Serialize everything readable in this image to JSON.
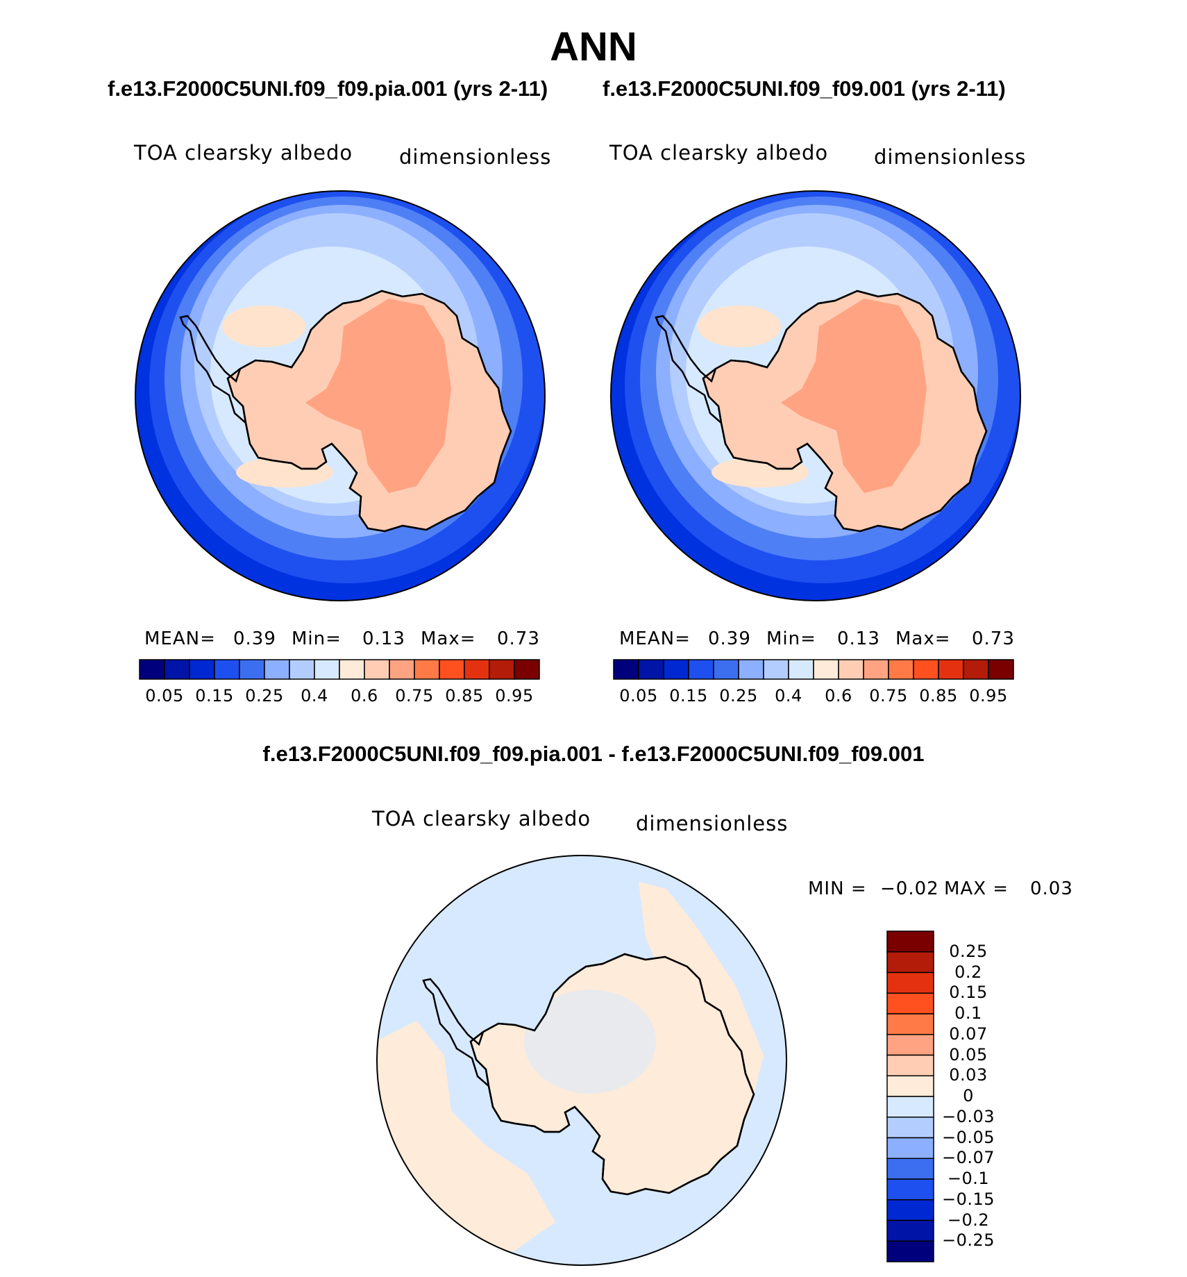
{
  "page_title": "ANN",
  "panels": [
    {
      "id": "left",
      "case": "f.e13.F2000C5UNI.f09_f09.pia.001 (yrs 2-11)",
      "variable": "TOA clearsky albedo",
      "units": "dimensionless",
      "stats": {
        "mean_label": "MEAN=",
        "mean": "0.39",
        "min_label": "Min=",
        "min": "0.13",
        "max_label": "Max=",
        "max": "0.73"
      }
    },
    {
      "id": "right",
      "case": "f.e13.F2000C5UNI.f09_f09.001 (yrs 2-11)",
      "variable": "TOA clearsky albedo",
      "units": "dimensionless",
      "stats": {
        "mean_label": "MEAN=",
        "mean": "0.39",
        "min_label": "Min=",
        "min": "0.13",
        "max_label": "Max=",
        "max": "0.73"
      }
    }
  ],
  "colorbar": {
    "colors": [
      "#00007c",
      "#0014a8",
      "#0028d2",
      "#1e50f0",
      "#3c6ef0",
      "#8cafff",
      "#b4cdff",
      "#d7e9ff",
      "#ffebd9",
      "#ffcdb4",
      "#ffa382",
      "#ff7a46",
      "#ff5020",
      "#e43210",
      "#b41c0a",
      "#7a0000"
    ],
    "tick_labels": [
      "0.05",
      "0.15",
      "0.25",
      "0.4",
      "0.6",
      "0.75",
      "0.85",
      "0.95"
    ]
  },
  "diff": {
    "title": "f.e13.F2000C5UNI.f09_f09.pia.001 - f.e13.F2000C5UNI.f09_f09.001",
    "variable": "TOA clearsky albedo",
    "units": "dimensionless",
    "stats": {
      "min_label": "MIN =",
      "min": "−0.02",
      "max_label": "MAX =",
      "max": "0.03"
    },
    "colorbar_colors_top_to_bottom": [
      "#7a0000",
      "#b41c0a",
      "#e43210",
      "#ff5020",
      "#ff7a46",
      "#ffa382",
      "#ffcdb4",
      "#ffebd9",
      "#d7e9ff",
      "#b4cdff",
      "#8cafff",
      "#3c6ef0",
      "#1e50f0",
      "#0028d2",
      "#0014a8",
      "#00007c"
    ],
    "tick_labels": [
      "0.25",
      "0.2",
      "0.15",
      "0.1",
      "0.07",
      "0.05",
      "0.03",
      "0",
      "−0.03",
      "−0.05",
      "−0.07",
      "−0.1",
      "−0.15",
      "−0.2",
      "−0.25"
    ]
  },
  "map_fill_colors": {
    "ocean_outer": "#0032e0",
    "band1": "#1e50f0",
    "band2": "#4f7ff5",
    "band3": "#8cafff",
    "band4": "#b4cdff",
    "band5": "#d7e9ff",
    "ice_shelf": "#ffe3cc",
    "land_outer": "#ffcdb4",
    "land_inner": "#ffa382",
    "diff_ocean": "#d7e9ff",
    "diff_pos": "#ffebd9"
  }
}
